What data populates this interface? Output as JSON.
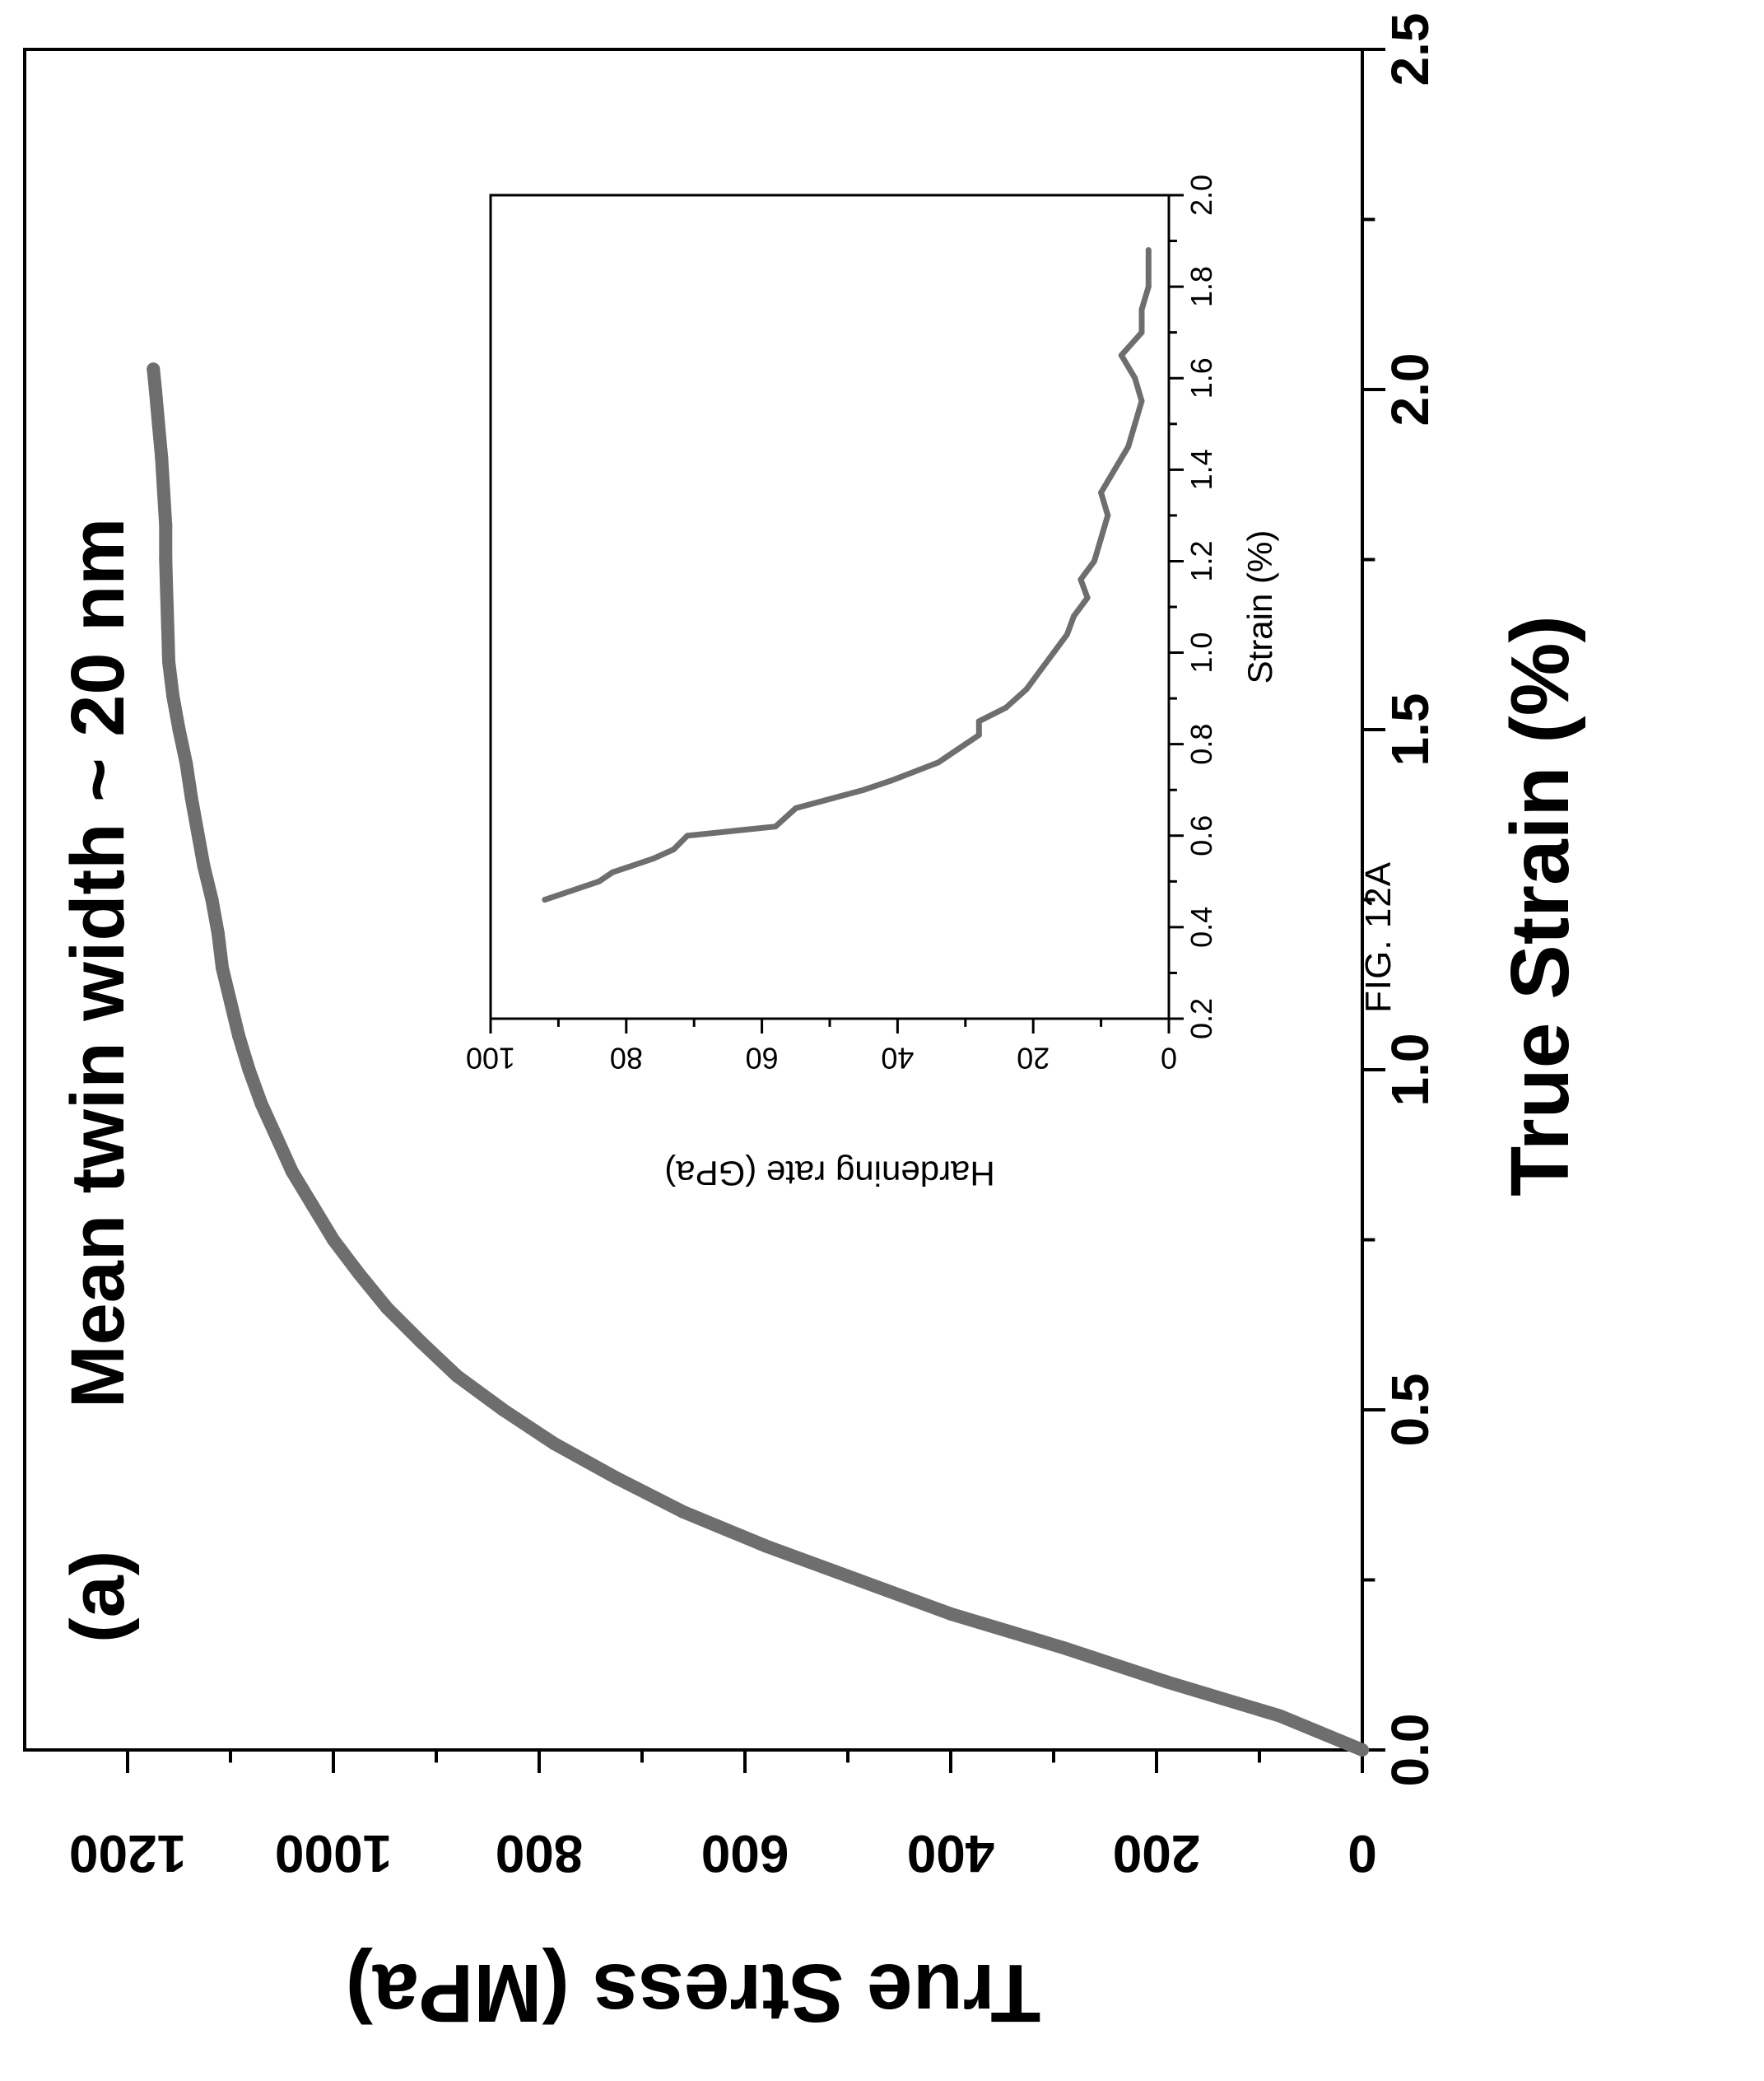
{
  "figure_label": "FIG. 12A",
  "chart_data": [
    {
      "type": "line",
      "panel_label": "(a)",
      "annotation": "Mean twin width ~ 20 nm",
      "xlabel": "True Strain (%)",
      "ylabel": "True Stress (MPa)",
      "xlim": [
        0,
        2.5
      ],
      "ylim": [
        0,
        1300
      ],
      "x_ticks": [
        0.0,
        0.5,
        1.0,
        1.5,
        2.0,
        2.5
      ],
      "x_tick_labels": [
        "0.0",
        "0.5",
        "1.0",
        "1.5",
        "2.0",
        "2.5"
      ],
      "y_ticks": [
        0,
        200,
        400,
        600,
        800,
        1000,
        1200
      ],
      "y_tick_labels": [
        "0",
        "200",
        "400",
        "600",
        "800",
        "1000",
        "1200"
      ],
      "line_color": "#6e6e6e",
      "series": [
        {
          "x": [
            0.0,
            0.05,
            0.1,
            0.15,
            0.2,
            0.25,
            0.3,
            0.35,
            0.4,
            0.45,
            0.5,
            0.55,
            0.6,
            0.65,
            0.7,
            0.75,
            0.8,
            0.85,
            0.9,
            0.95,
            1.0,
            1.05,
            1.1,
            1.15,
            1.2,
            1.25,
            1.3,
            1.35,
            1.4,
            1.45,
            1.5,
            1.55,
            1.6,
            1.65,
            1.7,
            1.75,
            1.8,
            1.85,
            1.9,
            1.95,
            2.0,
            2.03
          ],
          "y": [
            0,
            80,
            190,
            290,
            400,
            490,
            580,
            660,
            725,
            785,
            835,
            880,
            915,
            948,
            975,
            1000,
            1020,
            1040,
            1055,
            1070,
            1082,
            1092,
            1100,
            1108,
            1112,
            1118,
            1126,
            1132,
            1138,
            1143,
            1150,
            1156,
            1160,
            1161,
            1162,
            1163,
            1163,
            1165,
            1167,
            1170,
            1173,
            1175
          ]
        }
      ]
    },
    {
      "type": "line",
      "inset": true,
      "xlabel": "Strain (%)",
      "ylabel": "Hardening rate (GPa)",
      "xlim": [
        0.2,
        2.0
      ],
      "ylim": [
        0,
        100
      ],
      "x_ticks": [
        0.2,
        0.4,
        0.6,
        0.8,
        1.0,
        1.2,
        1.4,
        1.6,
        1.8,
        2.0
      ],
      "x_tick_labels": [
        "0.2",
        "0.4",
        "0.6",
        "0.8",
        "1.0",
        "1.2",
        "1.4",
        "1.6",
        "1.8",
        "2.0"
      ],
      "y_ticks": [
        0,
        20,
        40,
        60,
        80,
        100
      ],
      "y_tick_labels": [
        "0",
        "20",
        "40",
        "60",
        "80",
        "100"
      ],
      "line_color": "#6e6e6e",
      "series": [
        {
          "x": [
            0.46,
            0.5,
            0.52,
            0.55,
            0.57,
            0.6,
            0.62,
            0.66,
            0.7,
            0.72,
            0.76,
            0.8,
            0.82,
            0.85,
            0.88,
            0.92,
            0.96,
            1.0,
            1.04,
            1.08,
            1.12,
            1.16,
            1.2,
            1.25,
            1.3,
            1.35,
            1.4,
            1.45,
            1.5,
            1.55,
            1.6,
            1.65,
            1.7,
            1.75,
            1.8,
            1.85,
            1.88
          ],
          "y": [
            92,
            84,
            82,
            76,
            73,
            71,
            58,
            55,
            45,
            41,
            34,
            30,
            28,
            28,
            24,
            21,
            19,
            17,
            15,
            14,
            12,
            13,
            11,
            10,
            9,
            10,
            8,
            6,
            5,
            4,
            5,
            7,
            4,
            4,
            3,
            3,
            3
          ]
        }
      ]
    }
  ]
}
